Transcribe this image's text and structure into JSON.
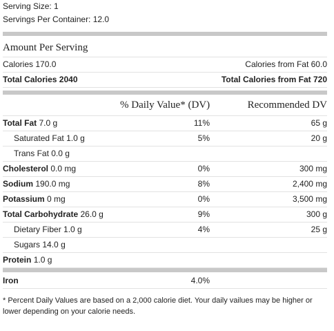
{
  "serving": {
    "size": "Serving Size: 1",
    "per_container": "Servings Per Container: 12.0"
  },
  "amount_header": "Amount Per Serving",
  "calories": {
    "left": "Calories 170.0",
    "right": "Calories from Fat 60.0"
  },
  "total_calories": {
    "left": "Total Calories 2040",
    "right": "Total Calories from Fat 720"
  },
  "columns": {
    "dv": "% Daily Value* (DV)",
    "recommended": "Recommended DV"
  },
  "nutrients": [
    {
      "name": "Total Fat",
      "amount": "7.0 g",
      "dv": "11%",
      "recommended": "65 g",
      "indent": false
    },
    {
      "name": "Saturated Fat",
      "amount": "1.0 g",
      "dv": "5%",
      "recommended": "20 g",
      "indent": true
    },
    {
      "name": "Trans Fat",
      "amount": "0.0 g",
      "indent": true
    },
    {
      "name": "Cholesterol",
      "amount": "0.0 mg",
      "dv": "0%",
      "recommended": "300 mg",
      "indent": false
    },
    {
      "name": "Sodium",
      "amount": "190.0 mg",
      "dv": "8%",
      "recommended": "2,400 mg",
      "indent": false
    },
    {
      "name": "Potassium",
      "amount": "0 mg",
      "dv": "0%",
      "recommended": "3,500 mg",
      "indent": false
    },
    {
      "name": "Total Carbohydrate",
      "amount": "26.0 g",
      "dv": "9%",
      "recommended": "300 g",
      "indent": false
    },
    {
      "name": "Dietary Fiber",
      "amount": "1.0 g",
      "dv": "4%",
      "recommended": "25 g",
      "indent": true
    },
    {
      "name": "Sugars",
      "amount": "14.0 g",
      "indent": true
    },
    {
      "name": "Protein",
      "amount": "1.0 g",
      "indent": false
    }
  ],
  "iron": {
    "name": "Iron",
    "value": "4.0%"
  },
  "footnote": "* Percent Daily Values are based on a 2,000 calorie diet. Your daily vailues may be higher or lower depending on your calorie needs."
}
